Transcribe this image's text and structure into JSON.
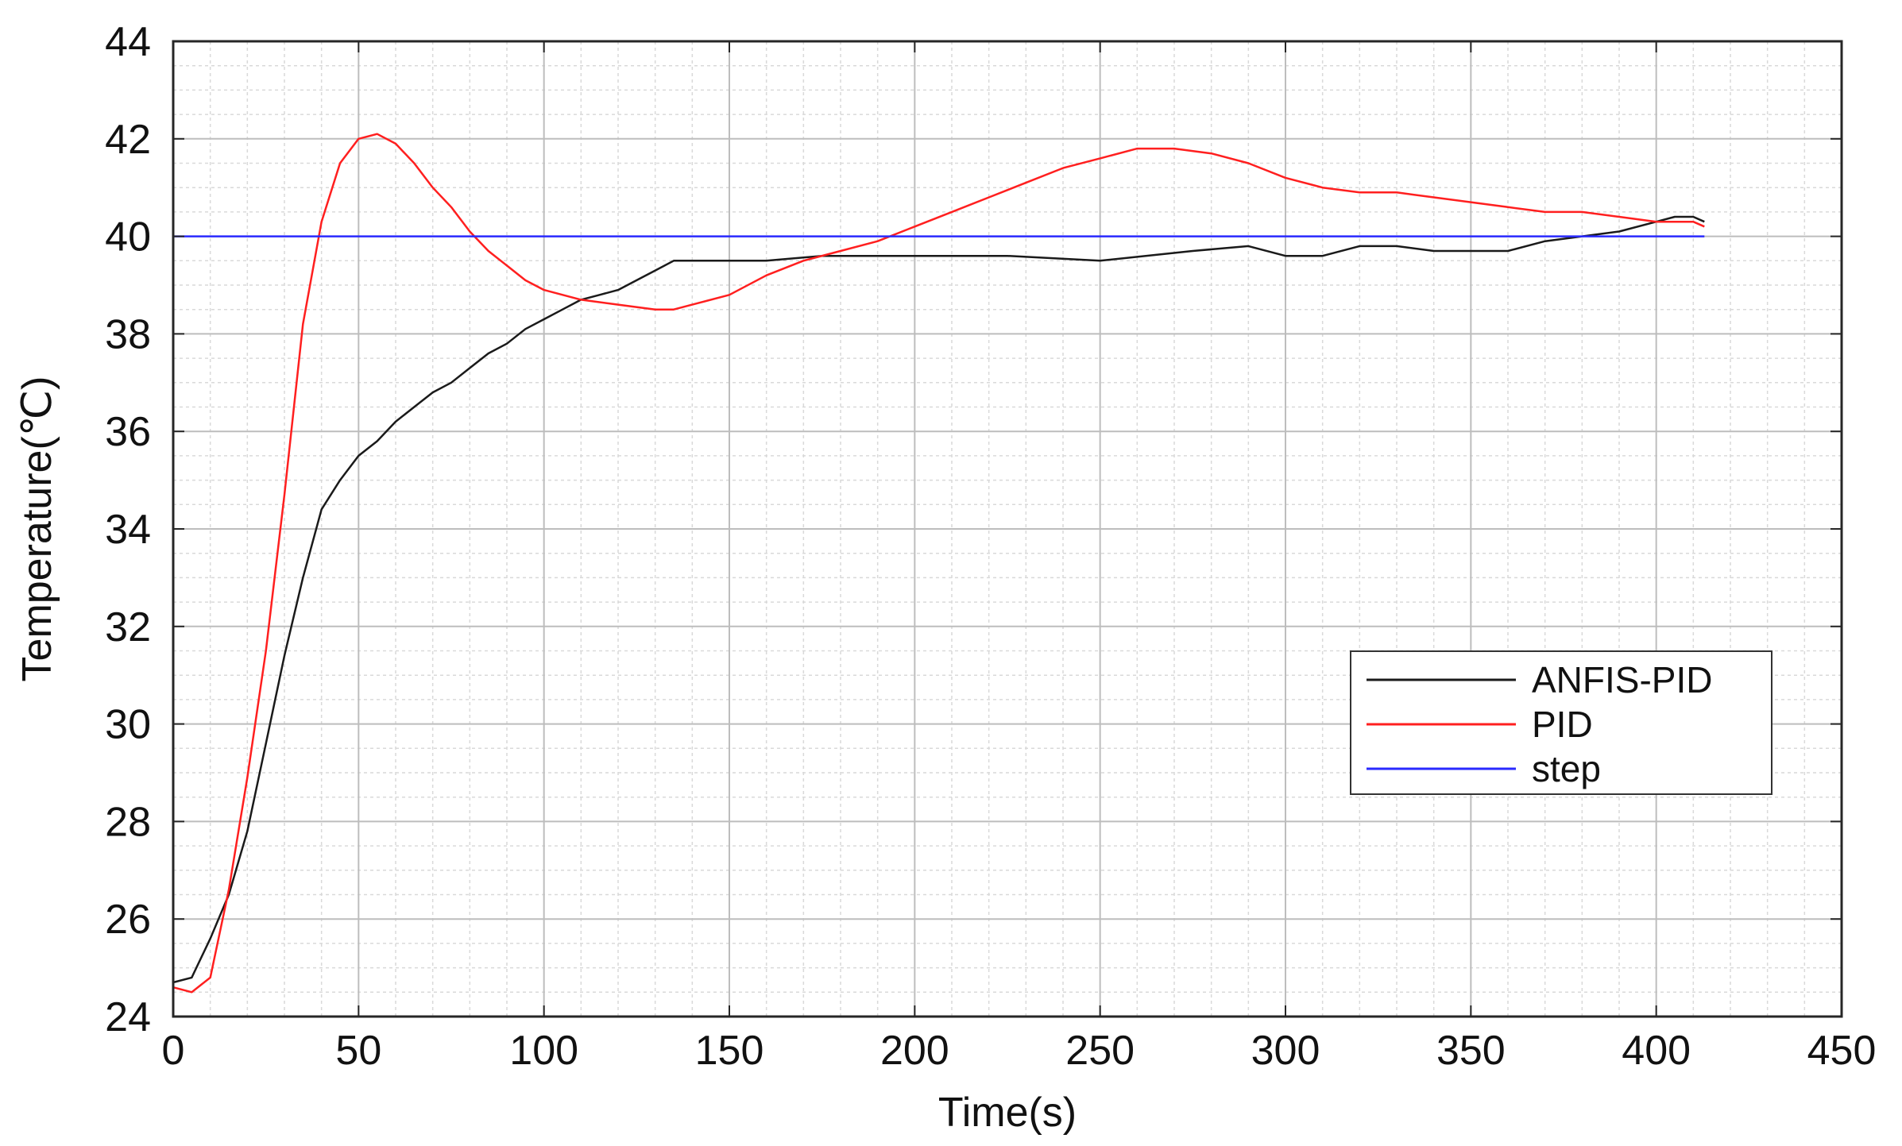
{
  "chart_data": {
    "type": "line",
    "title": "",
    "xlabel": "Time(s)",
    "ylabel": "Temperature(℃)",
    "xlim": [
      0,
      450
    ],
    "ylim": [
      24,
      44
    ],
    "xticks": [
      0,
      50,
      100,
      150,
      200,
      250,
      300,
      350,
      400,
      450
    ],
    "yticks": [
      24,
      26,
      28,
      30,
      32,
      34,
      36,
      38,
      40,
      42,
      44
    ],
    "x_minor_step": 10,
    "y_minor_step": 0.5,
    "grid": true,
    "minor_grid": true,
    "legend_position": "lower-right",
    "series": [
      {
        "name": "ANFIS-PID",
        "color": "#1a1a1a",
        "x": [
          0,
          5,
          10,
          15,
          20,
          25,
          30,
          35,
          40,
          45,
          50,
          55,
          60,
          65,
          70,
          75,
          80,
          85,
          90,
          95,
          100,
          105,
          110,
          115,
          120,
          125,
          130,
          135,
          140,
          150,
          160,
          175,
          200,
          225,
          250,
          275,
          290,
          300,
          310,
          320,
          330,
          340,
          350,
          360,
          370,
          380,
          390,
          400,
          405,
          410,
          413
        ],
        "y": [
          24.7,
          24.8,
          25.6,
          26.5,
          27.8,
          29.6,
          31.4,
          33.0,
          34.4,
          35.0,
          35.5,
          35.8,
          36.2,
          36.5,
          36.8,
          37.0,
          37.3,
          37.6,
          37.8,
          38.1,
          38.3,
          38.5,
          38.7,
          38.8,
          38.9,
          39.1,
          39.3,
          39.5,
          39.5,
          39.5,
          39.5,
          39.6,
          39.6,
          39.6,
          39.5,
          39.7,
          39.8,
          39.6,
          39.6,
          39.8,
          39.8,
          39.7,
          39.7,
          39.7,
          39.9,
          40.0,
          40.1,
          40.3,
          40.4,
          40.4,
          40.3
        ]
      },
      {
        "name": "PID",
        "color": "#ff1f1f",
        "x": [
          0,
          5,
          10,
          15,
          20,
          25,
          30,
          35,
          40,
          45,
          50,
          55,
          60,
          65,
          70,
          75,
          80,
          85,
          90,
          95,
          100,
          110,
          120,
          130,
          135,
          140,
          150,
          160,
          170,
          180,
          190,
          200,
          210,
          220,
          230,
          240,
          250,
          260,
          270,
          280,
          290,
          300,
          310,
          320,
          330,
          340,
          350,
          360,
          370,
          380,
          390,
          400,
          410,
          413
        ],
        "y": [
          24.6,
          24.5,
          24.8,
          26.6,
          28.9,
          31.5,
          34.7,
          38.2,
          40.3,
          41.5,
          42.0,
          42.1,
          41.9,
          41.5,
          41.0,
          40.6,
          40.1,
          39.7,
          39.4,
          39.1,
          38.9,
          38.7,
          38.6,
          38.5,
          38.5,
          38.6,
          38.8,
          39.2,
          39.5,
          39.7,
          39.9,
          40.2,
          40.5,
          40.8,
          41.1,
          41.4,
          41.6,
          41.8,
          41.8,
          41.7,
          41.5,
          41.2,
          41.0,
          40.9,
          40.9,
          40.8,
          40.7,
          40.6,
          40.5,
          40.5,
          40.4,
          40.3,
          40.3,
          40.2
        ]
      },
      {
        "name": "step",
        "color": "#2a2aff",
        "x": [
          0,
          413
        ],
        "y": [
          40,
          40
        ]
      }
    ]
  }
}
